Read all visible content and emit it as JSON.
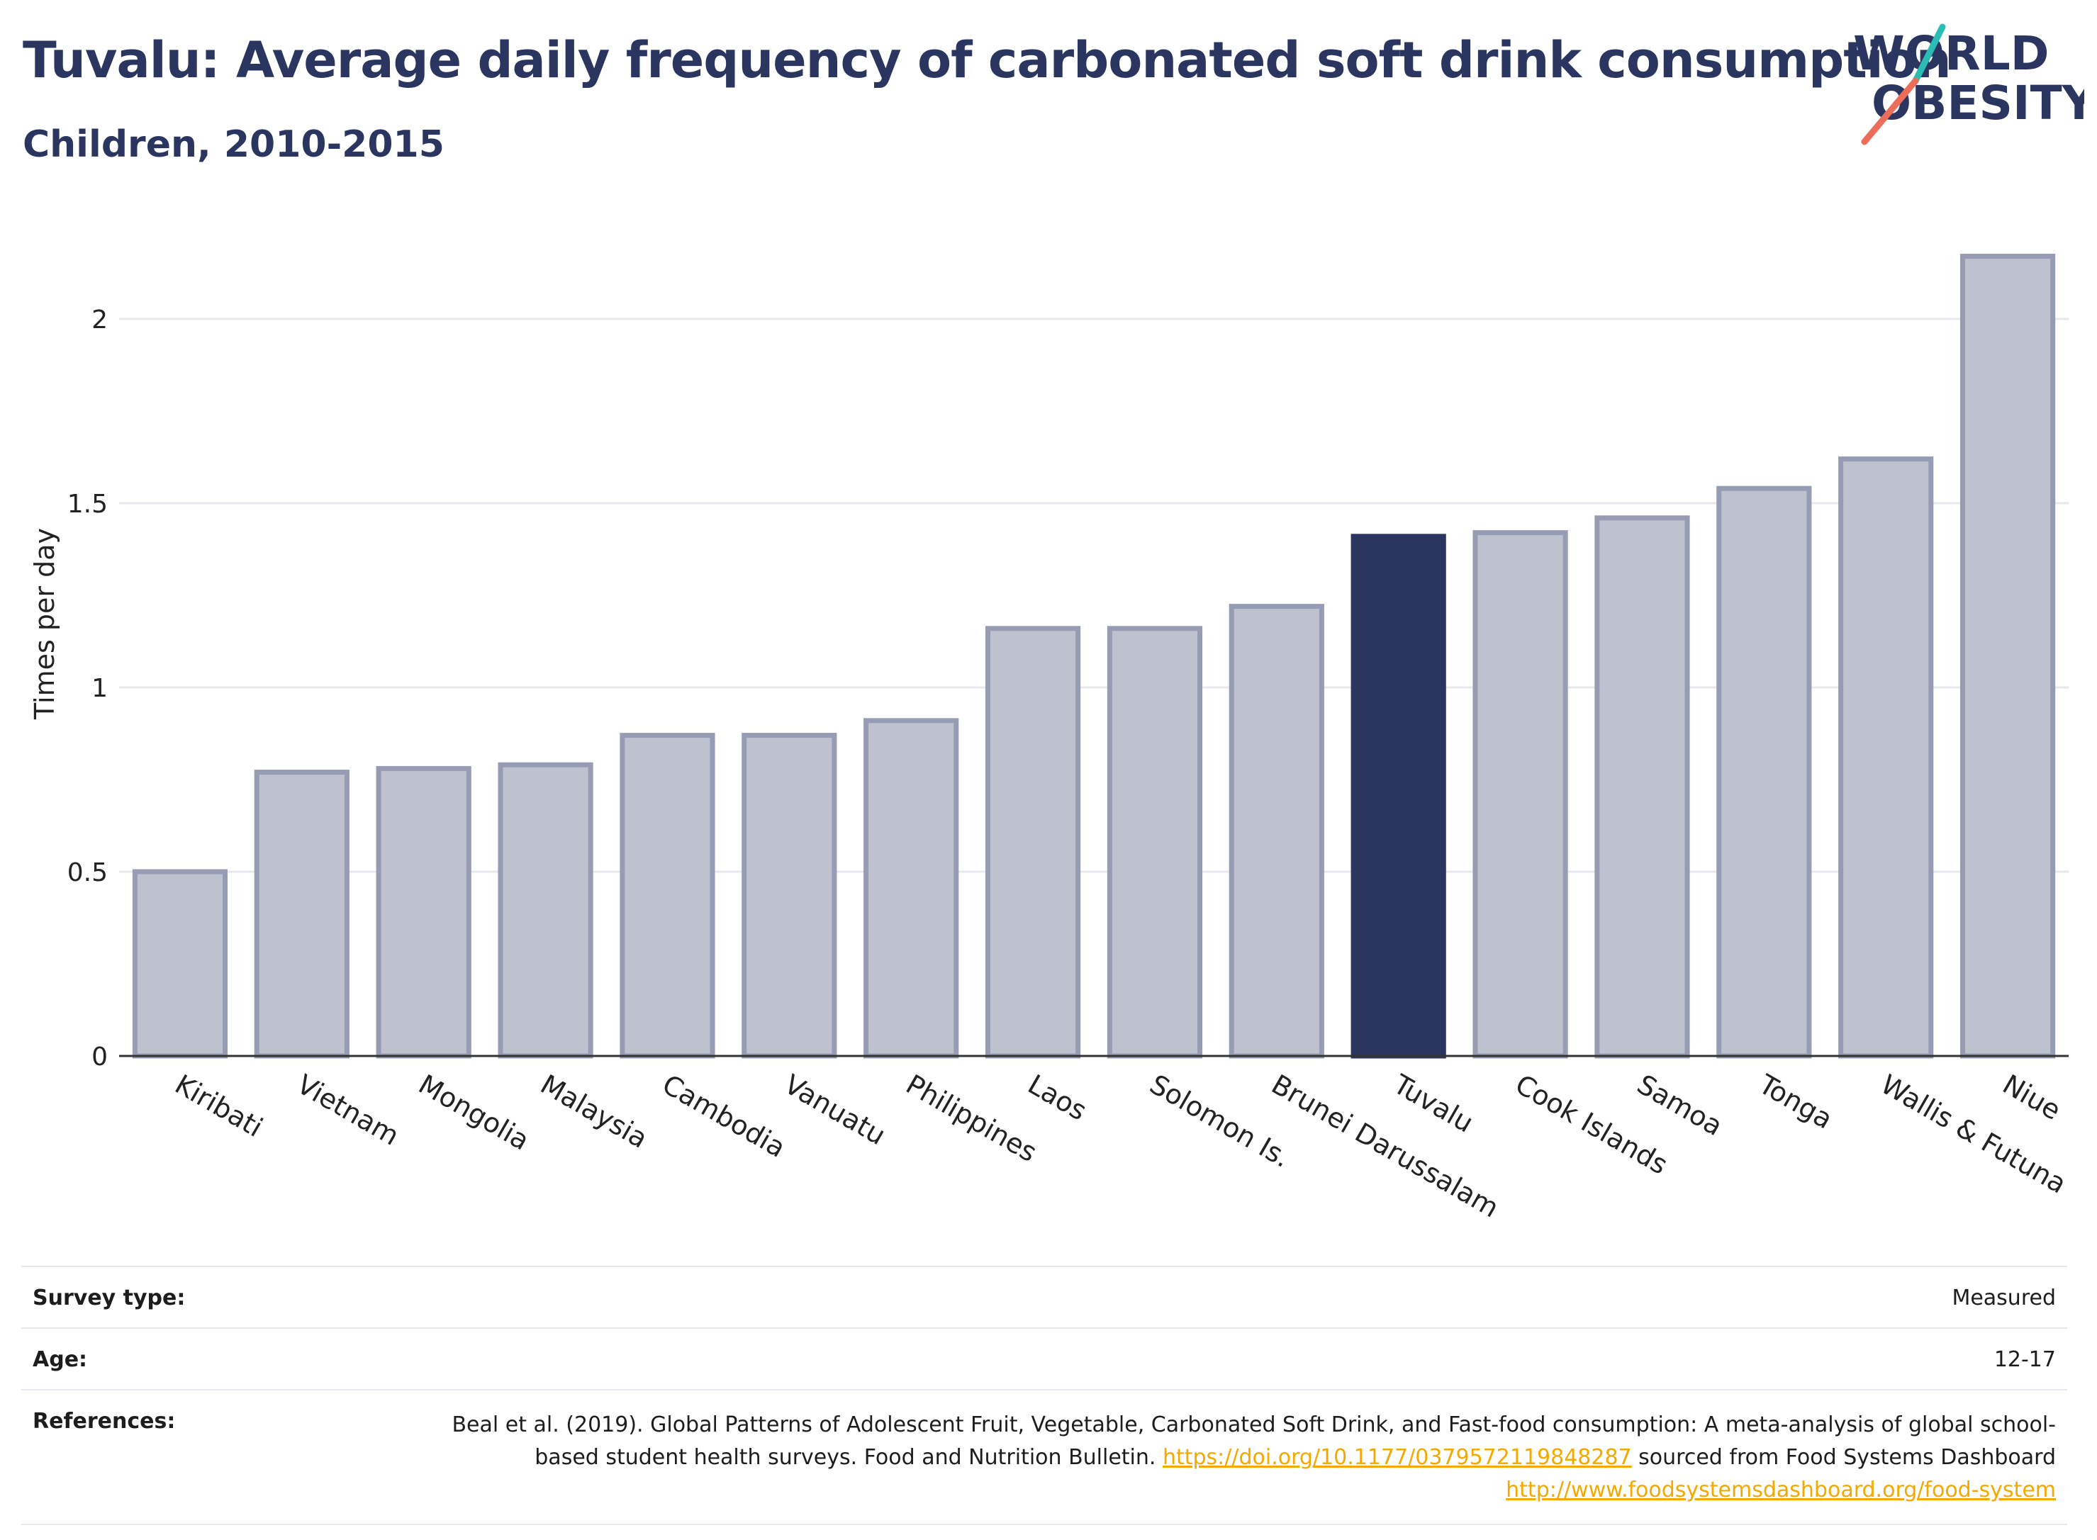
{
  "header": {
    "title": "Tuvalu: Average daily frequency of carbonated soft drink consumption",
    "subtitle": "Children, 2010-2015"
  },
  "logo": {
    "line1": "WORLD",
    "line2": "OBESITY",
    "accent_teal": "#2bbdb5",
    "accent_coral": "#ec6e5a"
  },
  "chart_data": {
    "type": "bar",
    "ylabel": "Times per day",
    "ylim": [
      0,
      2.25
    ],
    "yticks": [
      0,
      0.5,
      1,
      1.5,
      2
    ],
    "ytick_labels": [
      "0",
      "0.5",
      "1",
      "1.5",
      "2"
    ],
    "categories": [
      "Kiribati",
      "Vietnam",
      "Mongolia",
      "Malaysia",
      "Cambodia",
      "Vanuatu",
      "Philippines",
      "Laos",
      "Solomon Is.",
      "Brunei Darussalam",
      "Tuvalu",
      "Cook Islands",
      "Samoa",
      "Tonga",
      "Wallis & Futuna",
      "Niue"
    ],
    "values": [
      0.5,
      0.77,
      0.78,
      0.79,
      0.87,
      0.87,
      0.91,
      1.16,
      1.16,
      1.22,
      1.41,
      1.42,
      1.46,
      1.54,
      1.62,
      2.17
    ],
    "highlight": "Tuvalu",
    "colors": {
      "bar": "#bec2cf",
      "bar_stroke": "#959cb4",
      "highlight": "#2a3660",
      "grid": "#e8e8ec",
      "axis": "#333333"
    },
    "grid": true
  },
  "info": {
    "survey_label": "Survey type:",
    "survey_value": "Measured",
    "age_label": "Age:",
    "age_value": "12-17",
    "references_label": "References:",
    "ref_text1": "Beal et al. (2019). Global Patterns of Adolescent Fruit, Vegetable, Carbonated Soft Drink, and Fast-food consumption: A meta-analysis of global school-based student health surveys. Food and Nutrition Bulletin. ",
    "ref_link1": "https://doi.org/10.1177/0379572119848287",
    "ref_text2": " sourced from Food Systems Dashboard ",
    "ref_link2": "http://www.foodsystemsdashboard.org/food-system"
  }
}
